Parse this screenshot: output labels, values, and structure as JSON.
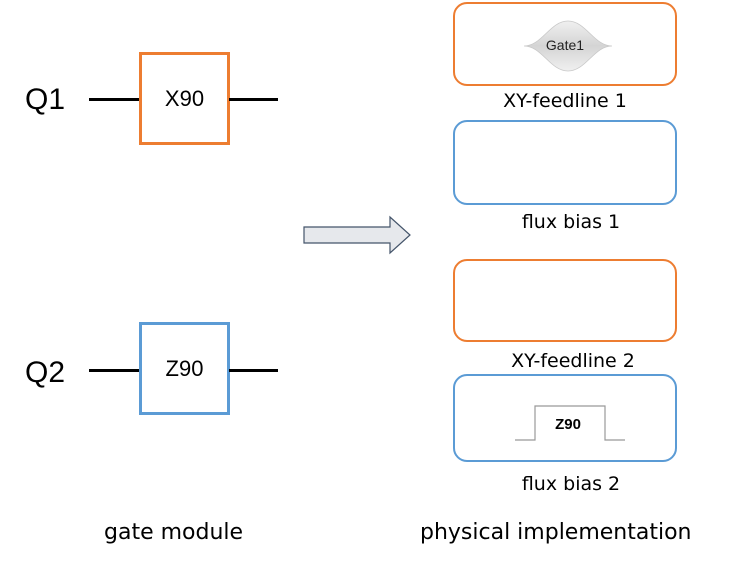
{
  "gate_module": {
    "caption": "gate module",
    "qubits": [
      {
        "label": "Q1",
        "gate": "X90",
        "gate_color": "#ed7d31"
      },
      {
        "label": "Q2",
        "gate": "Z90",
        "gate_color": "#5b9bd5"
      }
    ]
  },
  "physical_implementation": {
    "caption": "physical implementation",
    "channels": [
      {
        "label": "XY-feedline 1",
        "color": "#ed7d31",
        "pulse_label": "Gate1",
        "pulse_type": "gaussian"
      },
      {
        "label": "flux bias 1",
        "color": "#5b9bd5"
      },
      {
        "label": "XY-feedline 2",
        "color": "#ed7d31"
      },
      {
        "label": "flux bias 2",
        "color": "#5b9bd5",
        "pulse_label": "Z90",
        "pulse_type": "square"
      }
    ]
  },
  "arrow": {
    "direction": "right",
    "color": "#e6e8ec"
  }
}
